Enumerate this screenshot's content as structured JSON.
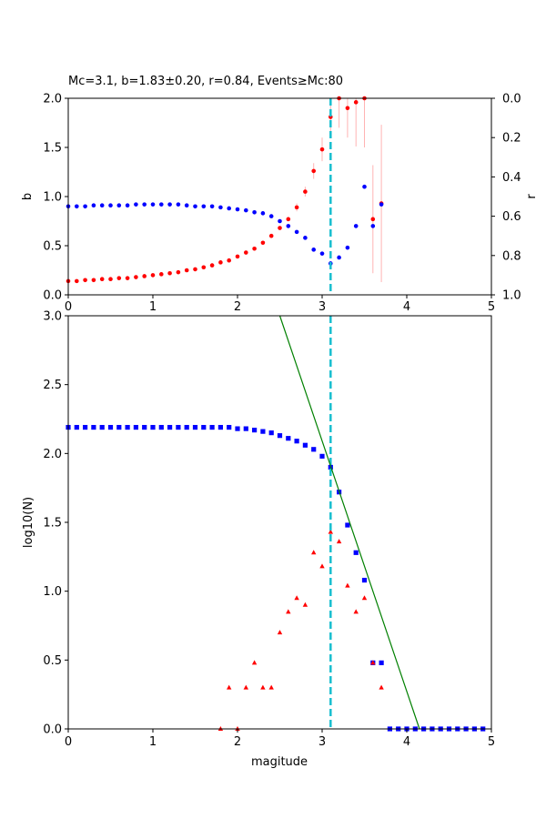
{
  "chart_data": [
    {
      "type": "scatter",
      "title": "Mc=3.1, b=1.83±0.20, r=0.84, Events≥Mc:80",
      "xlabel": "",
      "ylabel": "b",
      "ylabel_right": "r",
      "xlim": [
        0,
        5
      ],
      "ylim": [
        0,
        2
      ],
      "ylim_right": [
        1,
        0
      ],
      "x_ticks": [
        "0",
        "1",
        "2",
        "3",
        "4",
        "5"
      ],
      "y_ticks": [
        "0.0",
        "0.5",
        "1.0",
        "1.5",
        "2.0"
      ],
      "y_ticks_right": [
        "0.0",
        "0.2",
        "0.4",
        "0.6",
        "0.8",
        "1.0"
      ],
      "vline": 3.1,
      "grid": false,
      "series": [
        {
          "axis": "left",
          "color": "#ff0000",
          "x": [
            0.0,
            0.1,
            0.2,
            0.3,
            0.4,
            0.5,
            0.6,
            0.7,
            0.8,
            0.9,
            1.0,
            1.1,
            1.2,
            1.3,
            1.4,
            1.5,
            1.6,
            1.7,
            1.8,
            1.9,
            2.0,
            2.1,
            2.2,
            2.3,
            2.4,
            2.5,
            2.6,
            2.7,
            2.8,
            2.9,
            3.0,
            3.1,
            3.2,
            3.3,
            3.4,
            3.5,
            3.6,
            3.7
          ],
          "y": [
            0.14,
            0.14,
            0.15,
            0.15,
            0.16,
            0.16,
            0.17,
            0.17,
            0.18,
            0.19,
            0.2,
            0.21,
            0.22,
            0.23,
            0.25,
            0.26,
            0.28,
            0.3,
            0.33,
            0.35,
            0.39,
            0.43,
            0.47,
            0.53,
            0.6,
            0.68,
            0.77,
            0.89,
            1.05,
            1.26,
            1.48,
            1.81,
            2.0,
            1.9,
            1.96,
            2.0,
            0.77,
            0.93
          ],
          "err": [
            0,
            0,
            0,
            0,
            0,
            0,
            0,
            0,
            0,
            0,
            0,
            0,
            0,
            0,
            0,
            0,
            0,
            0,
            0,
            0,
            0,
            0,
            0,
            0,
            0,
            0,
            0,
            0.04,
            0.05,
            0.08,
            0.12,
            0.18,
            0.3,
            0.3,
            0.45,
            0.5,
            0.55,
            0.8
          ]
        },
        {
          "axis": "right",
          "color": "#0000ff",
          "x": [
            0.0,
            0.1,
            0.2,
            0.3,
            0.4,
            0.5,
            0.6,
            0.7,
            0.8,
            0.9,
            1.0,
            1.1,
            1.2,
            1.3,
            1.4,
            1.5,
            1.6,
            1.7,
            1.8,
            1.9,
            2.0,
            2.1,
            2.2,
            2.3,
            2.4,
            2.5,
            2.6,
            2.7,
            2.8,
            2.9,
            3.0,
            3.1,
            3.2,
            3.3,
            3.4,
            3.5,
            3.6,
            3.7
          ],
          "y": [
            0.55,
            0.55,
            0.55,
            0.545,
            0.545,
            0.545,
            0.545,
            0.545,
            0.54,
            0.54,
            0.54,
            0.54,
            0.54,
            0.54,
            0.545,
            0.55,
            0.55,
            0.55,
            0.555,
            0.56,
            0.565,
            0.57,
            0.58,
            0.585,
            0.6,
            0.625,
            0.65,
            0.68,
            0.71,
            0.77,
            0.79,
            0.84,
            0.81,
            0.76,
            0.65,
            0.45,
            0.65,
            0.54
          ]
        }
      ]
    },
    {
      "type": "scatter",
      "title": "",
      "xlabel": "magitude",
      "ylabel": "log10(N)",
      "xlim": [
        0,
        5
      ],
      "ylim": [
        0,
        3
      ],
      "x_ticks": [
        "0",
        "1",
        "2",
        "3",
        "4",
        "5"
      ],
      "y_ticks": [
        "0.0",
        "0.5",
        "1.0",
        "1.5",
        "2.0",
        "2.5",
        "3.0"
      ],
      "vline": 3.1,
      "fit_line": {
        "color": "#008000",
        "x": [
          2.5,
          4.15
        ],
        "y": [
          3.0,
          0.0
        ]
      },
      "grid": false,
      "series": [
        {
          "marker": "square",
          "color": "#0000ff",
          "x": [
            0.0,
            0.1,
            0.2,
            0.3,
            0.4,
            0.5,
            0.6,
            0.7,
            0.8,
            0.9,
            1.0,
            1.1,
            1.2,
            1.3,
            1.4,
            1.5,
            1.6,
            1.7,
            1.8,
            1.9,
            2.0,
            2.1,
            2.2,
            2.3,
            2.4,
            2.5,
            2.6,
            2.7,
            2.8,
            2.9,
            3.0,
            3.1,
            3.2,
            3.3,
            3.4,
            3.5,
            3.6,
            3.7,
            3.8,
            3.9,
            4.0,
            4.1,
            4.2,
            4.3,
            4.4,
            4.5,
            4.6,
            4.7,
            4.8,
            4.9
          ],
          "y": [
            2.19,
            2.19,
            2.19,
            2.19,
            2.19,
            2.19,
            2.19,
            2.19,
            2.19,
            2.19,
            2.19,
            2.19,
            2.19,
            2.19,
            2.19,
            2.19,
            2.19,
            2.19,
            2.19,
            2.19,
            2.18,
            2.18,
            2.17,
            2.16,
            2.15,
            2.13,
            2.11,
            2.09,
            2.06,
            2.03,
            1.98,
            1.9,
            1.72,
            1.48,
            1.28,
            1.08,
            0.48,
            0.48,
            0,
            0,
            0,
            0,
            0,
            0,
            0,
            0,
            0,
            0,
            0,
            0
          ]
        },
        {
          "marker": "triangle",
          "color": "#ff0000",
          "x": [
            1.8,
            1.9,
            2.0,
            2.1,
            2.2,
            2.3,
            2.4,
            2.5,
            2.6,
            2.7,
            2.8,
            2.9,
            3.0,
            3.1,
            3.2,
            3.3,
            3.4,
            3.5,
            3.6,
            3.7
          ],
          "y": [
            0,
            0.3,
            0,
            0.3,
            0.48,
            0.3,
            0.3,
            0.7,
            0.85,
            0.95,
            0.9,
            1.28,
            1.18,
            1.43,
            1.36,
            1.04,
            0.85,
            0.95,
            0.48,
            0.3
          ]
        }
      ]
    }
  ]
}
